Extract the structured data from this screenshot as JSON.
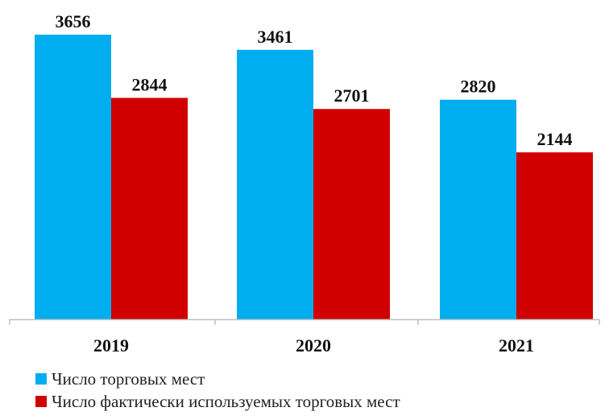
{
  "chart_data": {
    "type": "bar",
    "categories": [
      "2019",
      "2020",
      "2021"
    ],
    "series": [
      {
        "name": "Число торговых мест",
        "values": [
          3656,
          3461,
          2820
        ],
        "color": "#00AEEF"
      },
      {
        "name": "Число фактически используемых торговых мест",
        "values": [
          2844,
          2701,
          2144
        ],
        "color": "#D10000"
      }
    ],
    "data_labels": {
      "0": [
        "3656",
        "3461",
        "2820"
      ],
      "1": [
        "2844",
        "2701",
        "2144"
      ]
    },
    "ylim": [
      0,
      3656
    ],
    "grid": false,
    "legend_position": "bottom-left",
    "axis_color": "#BFBFBF"
  }
}
